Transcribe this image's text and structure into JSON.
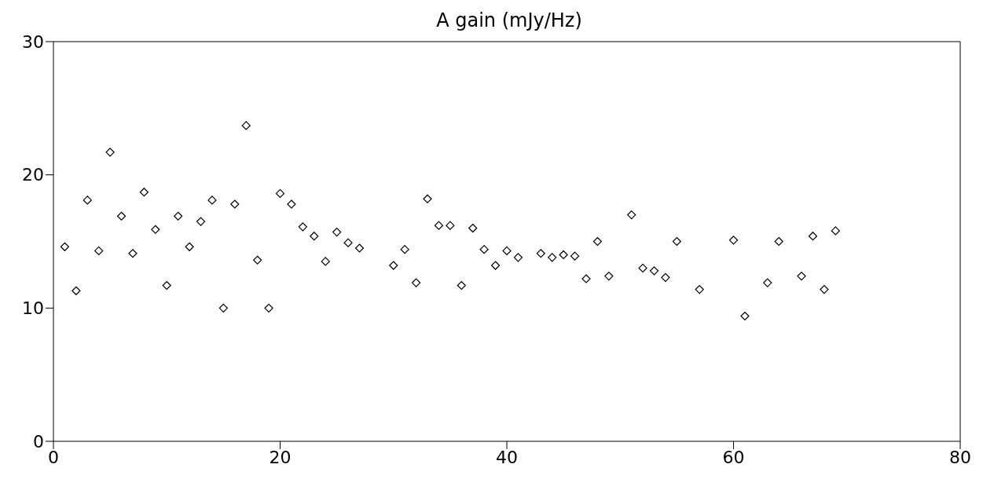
{
  "chart_data": {
    "type": "scatter",
    "title": "A gain (mJy/Hz)",
    "marker": "diamond",
    "x": [
      1,
      2,
      3,
      4,
      5,
      6,
      7,
      8,
      9,
      10,
      11,
      12,
      13,
      14,
      15,
      16,
      17,
      18,
      19,
      20,
      21,
      22,
      23,
      24,
      25,
      26,
      27,
      30,
      31,
      32,
      33,
      34,
      35,
      36,
      37,
      38,
      39,
      40,
      41,
      43,
      44,
      45,
      46,
      47,
      48,
      49,
      51,
      52,
      53,
      54,
      55,
      57,
      60,
      61,
      63,
      64,
      66,
      67,
      68,
      69
    ],
    "series": [
      {
        "color": "#000000",
        "values": [
          14.6,
          11.3,
          18.1,
          14.3,
          21.7,
          16.9,
          14.1,
          18.7,
          15.9,
          11.7,
          16.9,
          14.6,
          16.5,
          18.1,
          10.0,
          17.8,
          23.7,
          13.6,
          10.0,
          18.6,
          17.8,
          16.1,
          15.4,
          13.5,
          15.7,
          14.9,
          14.5,
          13.2,
          14.4,
          11.9,
          18.2,
          16.2,
          16.2,
          11.7,
          16.0,
          14.4,
          13.2,
          14.3,
          13.8,
          14.1,
          13.8,
          14.0,
          13.9,
          12.2,
          15.0,
          12.4,
          17.0,
          13.0,
          12.8,
          12.3,
          15.0,
          11.4,
          15.1,
          9.4,
          11.9,
          15.0,
          12.4,
          15.4,
          11.4,
          15.8
        ]
      }
    ],
    "xlim": [
      0,
      80
    ],
    "xticks": [
      0,
      20,
      40,
      60,
      80
    ],
    "ylim": [
      0,
      30
    ],
    "yticks": [
      0,
      10,
      20,
      30
    ]
  }
}
